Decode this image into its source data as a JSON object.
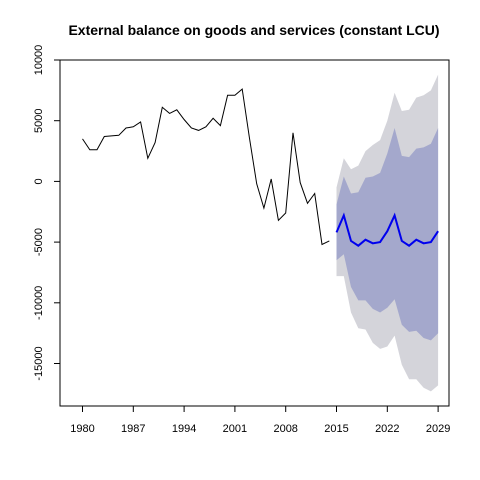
{
  "chart_data": {
    "type": "line",
    "title": "External balance on goods and services (constant LCU)",
    "xlabel": "",
    "ylabel": "",
    "xlim": [
      1976.9,
      2030.5
    ],
    "ylim": [
      -18500,
      10000
    ],
    "x_ticks": [
      1980,
      1987,
      1994,
      2001,
      2008,
      2015,
      2022,
      2029
    ],
    "y_ticks": [
      -15000,
      -10000,
      -5000,
      0,
      5000,
      10000
    ],
    "grid": false,
    "colors": {
      "history": "#000000",
      "forecast": "#0000ee",
      "band_80": "#a4a8cc",
      "band_95": "#d4d4da"
    },
    "history": {
      "x": [
        1980,
        1981,
        1982,
        1983,
        1984,
        1985,
        1986,
        1987,
        1988,
        1989,
        1990,
        1991,
        1992,
        1993,
        1994,
        1995,
        1996,
        1997,
        1998,
        1999,
        2000,
        2001,
        2002,
        2003,
        2004,
        2005,
        2006,
        2007,
        2008,
        2009,
        2010,
        2011,
        2012,
        2013,
        2014
      ],
      "y": [
        3500,
        2600,
        2600,
        3700,
        3750,
        3800,
        4400,
        4500,
        4900,
        1900,
        3200,
        6100,
        5600,
        5900,
        5100,
        4400,
        4200,
        4500,
        5200,
        4600,
        7100,
        7100,
        7600,
        3600,
        -200,
        -2200,
        200,
        -3200,
        -2600,
        4000,
        -100,
        -1800,
        -1000,
        -5200,
        -4900
      ]
    },
    "forecast": {
      "x": [
        2015,
        2016,
        2017,
        2018,
        2019,
        2020,
        2021,
        2022,
        2023,
        2024,
        2025,
        2026,
        2027,
        2028,
        2029
      ],
      "mean": [
        -4200,
        -2800,
        -4900,
        -5300,
        -4800,
        -5100,
        -5000,
        -4100,
        -2800,
        -4900,
        -5300,
        -4800,
        -5100,
        -5000,
        -4100
      ],
      "lo80": [
        -6500,
        -6000,
        -8700,
        -9800,
        -9800,
        -10500,
        -10800,
        -10400,
        -9700,
        -11800,
        -12400,
        -12300,
        -12900,
        -13100,
        -12500
      ],
      "hi80": [
        -1900,
        400,
        -1000,
        -900,
        300,
        400,
        700,
        2300,
        4400,
        2100,
        2000,
        2700,
        2800,
        3100,
        4400
      ],
      "lo95": [
        -7800,
        -7800,
        -10800,
        -12100,
        -12200,
        -13300,
        -13800,
        -13600,
        -12700,
        -15100,
        -16300,
        -16300,
        -17000,
        -17300,
        -16800
      ],
      "hi95": [
        -500,
        1900,
        1000,
        1300,
        2500,
        3000,
        3400,
        5000,
        7300,
        5800,
        5900,
        6900,
        7100,
        7500,
        8800
      ]
    }
  }
}
